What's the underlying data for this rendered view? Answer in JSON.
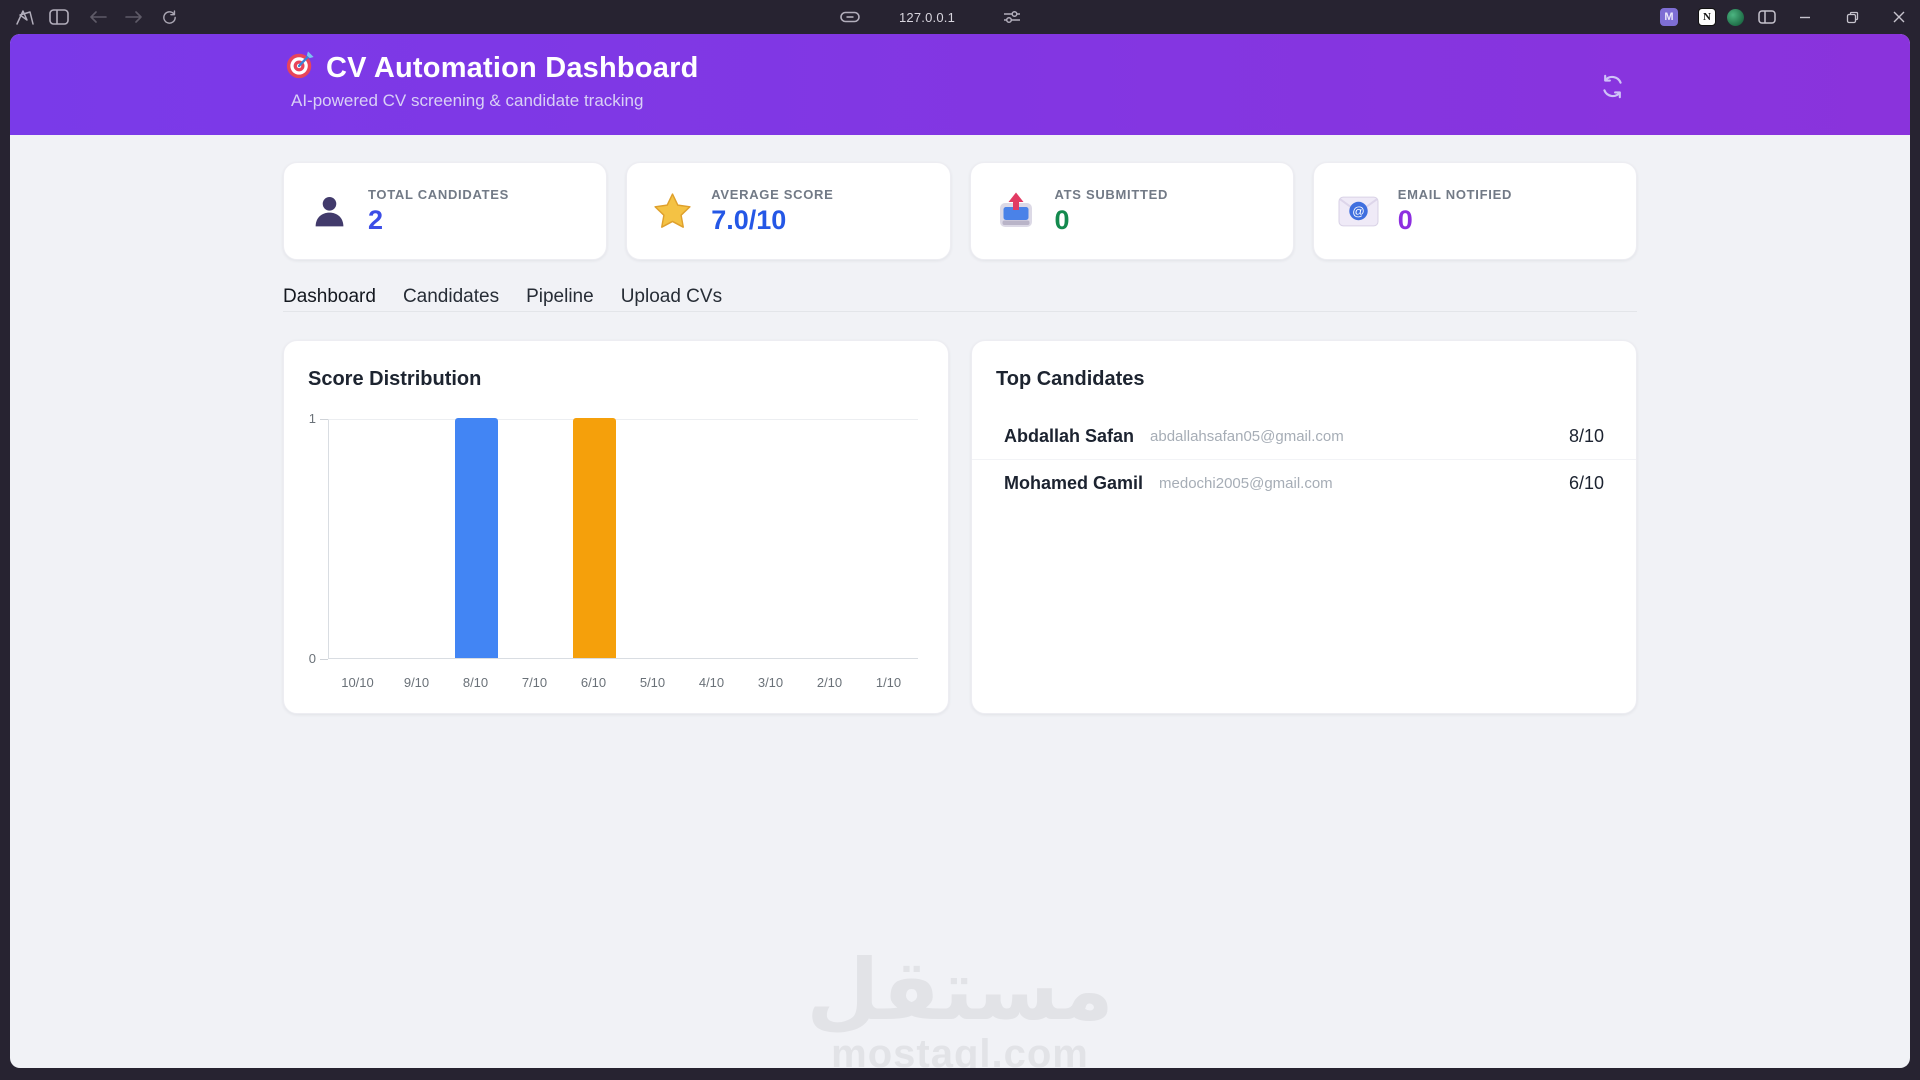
{
  "browser": {
    "url": "127.0.0.1",
    "left_icons": [
      "browser-logo-icon",
      "sidebar-toggle-icon",
      "back-icon",
      "forward-icon",
      "refresh-icon"
    ],
    "url_bar_icons": [
      "link-icon",
      "tune-icon"
    ],
    "right_icons": [
      "extension-m-icon",
      "notion-icon",
      "extension-green-icon",
      "split-view-icon"
    ],
    "window_controls": [
      "minimize-icon",
      "restore-icon",
      "close-icon"
    ],
    "extension_badges": {
      "m": "M",
      "n": "N"
    }
  },
  "header": {
    "logo_icon": "target-dart-icon",
    "title": "CV Automation Dashboard",
    "subtitle": "AI-powered CV screening & candidate tracking",
    "refresh_icon": "refresh-circle-icon"
  },
  "stats": [
    {
      "icon": "person-icon",
      "label": "TOTAL CANDIDATES",
      "value": "2",
      "color": "#3c4ee6"
    },
    {
      "icon": "star-icon",
      "label": "AVERAGE SCORE",
      "value": "7.0/10",
      "color": "#2457e6"
    },
    {
      "icon": "outbox-icon",
      "label": "ATS SUBMITTED",
      "value": "0",
      "color": "#148a4e"
    },
    {
      "icon": "email-icon",
      "label": "EMAIL NOTIFIED",
      "value": "0",
      "color": "#8d2ee0"
    }
  ],
  "tabs": [
    {
      "label": "Dashboard",
      "active": true
    },
    {
      "label": "Candidates",
      "active": false
    },
    {
      "label": "Pipeline",
      "active": false
    },
    {
      "label": "Upload CVs",
      "active": false
    }
  ],
  "chart_data": {
    "type": "bar",
    "title": "Score Distribution",
    "categories": [
      "10/10",
      "9/10",
      "8/10",
      "7/10",
      "6/10",
      "5/10",
      "4/10",
      "3/10",
      "2/10",
      "1/10"
    ],
    "values": [
      0,
      0,
      1,
      0,
      1,
      0,
      0,
      0,
      0,
      0
    ],
    "bar_colors": [
      null,
      null,
      "#4285f4",
      null,
      "#f5a00b",
      null,
      null,
      null,
      null,
      null
    ],
    "xlabel": "",
    "ylabel": "",
    "ylim": [
      0,
      1
    ],
    "yticks": [
      0,
      1
    ],
    "grid": "top gridline only",
    "legend": false
  },
  "top_candidates": {
    "title": "Top Candidates",
    "rows": [
      {
        "name": "Abdallah Safan",
        "email": "abdallahsafan05@gmail.com",
        "score": "8/10"
      },
      {
        "name": "Mohamed Gamil",
        "email": "medochi2005@gmail.com",
        "score": "6/10"
      }
    ]
  },
  "watermark": {
    "arabic": "مستقل",
    "latin": "mostaql.com"
  }
}
